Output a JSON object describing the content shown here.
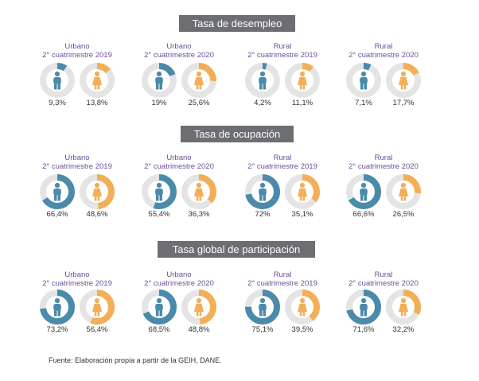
{
  "colors": {
    "male": "#4a8aaa",
    "female": "#f3ae58",
    "track": "#e4e4e4",
    "title_bg": "#6d6e71",
    "group_title": "#6b4f9a"
  },
  "icons": {
    "male": "man-icon",
    "female": "woman-icon"
  },
  "sections": [
    {
      "title": "Tasa de desempleo",
      "groups": [
        {
          "line1": "Urbano",
          "line2": "2° cuatrimestre 2019",
          "male": 9.3,
          "female": 13.8,
          "male_label": "9,3%",
          "female_label": "13,8%"
        },
        {
          "line1": "Urbano",
          "line2": "2° cuatrimestre 2020",
          "male": 19,
          "female": 25.6,
          "male_label": "19%",
          "female_label": "25,6%"
        },
        {
          "line1": "Rural",
          "line2": "2° cuatrimestre 2019",
          "male": 4.2,
          "female": 11.1,
          "male_label": "4,2%",
          "female_label": "11,1%"
        },
        {
          "line1": "Rural",
          "line2": "2° cuatrimestre 2020",
          "male": 7.1,
          "female": 17.7,
          "male_label": "7,1%",
          "female_label": "17,7%"
        }
      ]
    },
    {
      "title": "Tasa de ocupación",
      "groups": [
        {
          "line1": "Urbano",
          "line2": "2° cuatrimestre 2019",
          "male": 66.4,
          "female": 48.6,
          "male_label": "66,4%",
          "female_label": "48,6%"
        },
        {
          "line1": "Urbano",
          "line2": "2° cuatrimestre 2020",
          "male": 55.4,
          "female": 36.3,
          "male_label": "55,4%",
          "female_label": "36,3%"
        },
        {
          "line1": "Rural",
          "line2": "2° cuatrimestre 2019",
          "male": 72,
          "female": 35.1,
          "male_label": "72%",
          "female_label": "35,1%"
        },
        {
          "line1": "Rural",
          "line2": "2° cuatrimestre 2020",
          "male": 66.6,
          "female": 26.5,
          "male_label": "66,6%",
          "female_label": "26,5%"
        }
      ]
    },
    {
      "title": "Tasa global de participación",
      "groups": [
        {
          "line1": "Urbano",
          "line2": "2° cuatrimestre 2019",
          "male": 73.2,
          "female": 56.4,
          "male_label": "73,2%",
          "female_label": "56,4%"
        },
        {
          "line1": "Urbano",
          "line2": "2° cuatrimestre 2020",
          "male": 68.5,
          "female": 48.8,
          "male_label": "68,5%",
          "female_label": "48,8%"
        },
        {
          "line1": "Rural",
          "line2": "2° cuatrimestre 2019",
          "male": 75.1,
          "female": 39.5,
          "male_label": "75,1%",
          "female_label": "39,5%"
        },
        {
          "line1": "Rural",
          "line2": "2° cuatrimestre 2020",
          "male": 71.6,
          "female": 32.2,
          "male_label": "71,6%",
          "female_label": "32,2%"
        }
      ]
    }
  ],
  "footnote": "Fuente: Elaboración propia a partir de la GEIH, DANE.",
  "chart_data": [
    {
      "type": "pie",
      "title": "Tasa de desempleo",
      "categories": [
        "Urbano 2° cuatrimestre 2019",
        "Urbano 2° cuatrimestre 2020",
        "Rural 2° cuatrimestre 2019",
        "Rural 2° cuatrimestre 2020"
      ],
      "series": [
        {
          "values": [
            9.3,
            19,
            4.2,
            7.1
          ]
        },
        {
          "values": [
            13.8,
            25.6,
            11.1,
            17.7
          ]
        }
      ]
    },
    {
      "type": "pie",
      "title": "Tasa de ocupación",
      "categories": [
        "Urbano 2° cuatrimestre 2019",
        "Urbano 2° cuatrimestre 2020",
        "Rural 2° cuatrimestre 2019",
        "Rural 2° cuatrimestre 2020"
      ],
      "series": [
        {
          "values": [
            66.4,
            55.4,
            72,
            66.6
          ]
        },
        {
          "values": [
            48.6,
            36.3,
            35.1,
            26.5
          ]
        }
      ]
    },
    {
      "type": "pie",
      "title": "Tasa global de participación",
      "categories": [
        "Urbano 2° cuatrimestre 2019",
        "Urbano 2° cuatrimestre 2020",
        "Rural 2° cuatrimestre 2019",
        "Rural 2° cuatrimestre 2020"
      ],
      "series": [
        {
          "values": [
            73.2,
            68.5,
            75.1,
            71.6
          ]
        },
        {
          "values": [
            56.4,
            48.8,
            39.5,
            32.2
          ]
        }
      ]
    }
  ]
}
